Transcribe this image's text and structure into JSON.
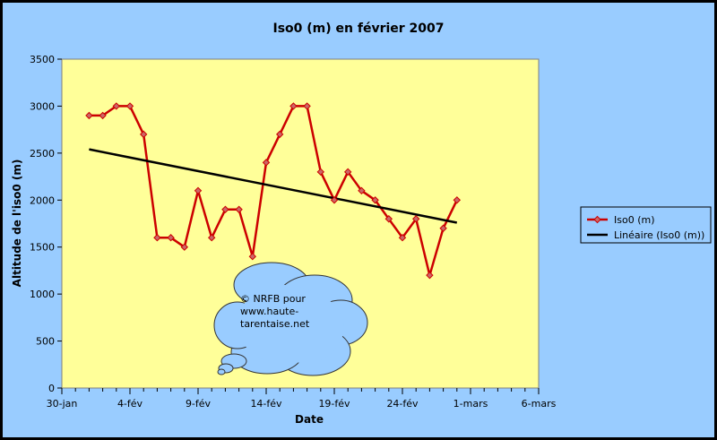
{
  "chart_data": {
    "type": "line",
    "title": "Iso0 (m) en février 2007",
    "xlabel": "Date",
    "ylabel": "Altitude de l'iso0 (m)",
    "ylim": [
      0,
      3500
    ],
    "yticks": [
      0,
      500,
      1000,
      1500,
      2000,
      2500,
      3000,
      3500
    ],
    "xlim": [
      "2007-01-30",
      "2007-03-06"
    ],
    "xticks": [
      {
        "date": "2007-01-30",
        "label": "30-jan"
      },
      {
        "date": "2007-02-04",
        "label": "4-fév"
      },
      {
        "date": "2007-02-09",
        "label": "9-fév"
      },
      {
        "date": "2007-02-14",
        "label": "14-fév"
      },
      {
        "date": "2007-02-19",
        "label": "19-fév"
      },
      {
        "date": "2007-02-24",
        "label": "24-fév"
      },
      {
        "date": "2007-03-01",
        "label": "1-mars"
      },
      {
        "date": "2007-03-06",
        "label": "6-mars"
      }
    ],
    "grid": false,
    "legend_position": "right",
    "plot_background": "#ffff99",
    "series": [
      {
        "name": "Iso0 (m)",
        "color": "#cc0000",
        "marker": "diamond",
        "x": [
          "2007-02-01",
          "2007-02-02",
          "2007-02-03",
          "2007-02-04",
          "2007-02-05",
          "2007-02-06",
          "2007-02-07",
          "2007-02-08",
          "2007-02-09",
          "2007-02-10",
          "2007-02-11",
          "2007-02-12",
          "2007-02-13",
          "2007-02-14",
          "2007-02-15",
          "2007-02-16",
          "2007-02-17",
          "2007-02-18",
          "2007-02-19",
          "2007-02-20",
          "2007-02-21",
          "2007-02-22",
          "2007-02-23",
          "2007-02-24",
          "2007-02-25",
          "2007-02-26",
          "2007-02-27",
          "2007-02-28"
        ],
        "y": [
          2900,
          2900,
          3000,
          3000,
          2700,
          1600,
          1600,
          1500,
          2100,
          1600,
          1900,
          1900,
          1400,
          2400,
          2700,
          3000,
          3000,
          2300,
          2000,
          2300,
          2100,
          2000,
          1800,
          1600,
          1800,
          1200,
          1700,
          2000
        ]
      },
      {
        "name": "Linéaire (Iso0 (m))",
        "color": "#000000",
        "type": "trendline",
        "x": [
          "2007-02-01",
          "2007-02-28"
        ],
        "y": [
          2540,
          1760
        ]
      }
    ],
    "annotation": "© NRFB pour www.haute-tarentaise.net"
  }
}
